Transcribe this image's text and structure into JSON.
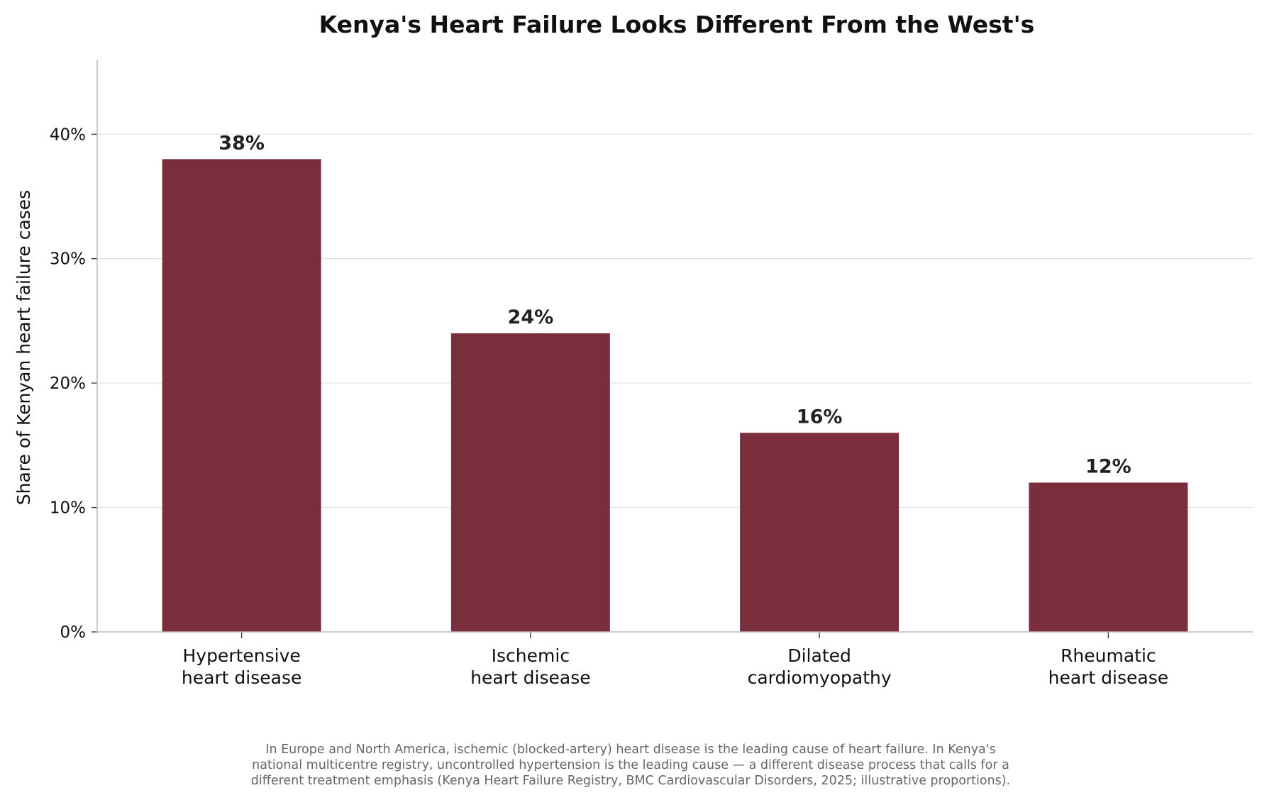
{
  "chart_data": {
    "type": "bar",
    "title": "Kenya's Heart Failure Looks Different From the West's",
    "ylabel": "Share of Kenyan heart failure cases",
    "xlabel": "",
    "categories": [
      [
        "Hypertensive",
        "heart disease"
      ],
      [
        "Ischemic",
        "heart disease"
      ],
      [
        "Dilated",
        "cardiomyopathy"
      ],
      [
        "Rheumatic",
        "heart disease"
      ]
    ],
    "values": [
      38,
      24,
      16,
      12
    ],
    "data_labels": [
      "38%",
      "24%",
      "16%",
      "12%"
    ],
    "ylim": [
      0,
      46
    ],
    "yticks": [
      0,
      10,
      20,
      30,
      40
    ],
    "ytick_labels": [
      "0%",
      "10%",
      "20%",
      "30%",
      "40%"
    ],
    "grid": "horizontal",
    "legend": "none",
    "bar_color": "#7a2e3b",
    "gridline_color": "#e5e5e5",
    "axis_color": "#bbbbbb"
  },
  "footnote": {
    "lines": [
      "In Europe and North America, ischemic (blocked-artery) heart disease is the leading cause of heart failure. In Kenya's",
      "national multicentre registry, uncontrolled hypertension is the leading cause — a different disease process that calls for a",
      "different treatment emphasis (Kenya Heart Failure Registry, BMC Cardiovascular Disorders, 2025; illustrative proportions)."
    ]
  }
}
